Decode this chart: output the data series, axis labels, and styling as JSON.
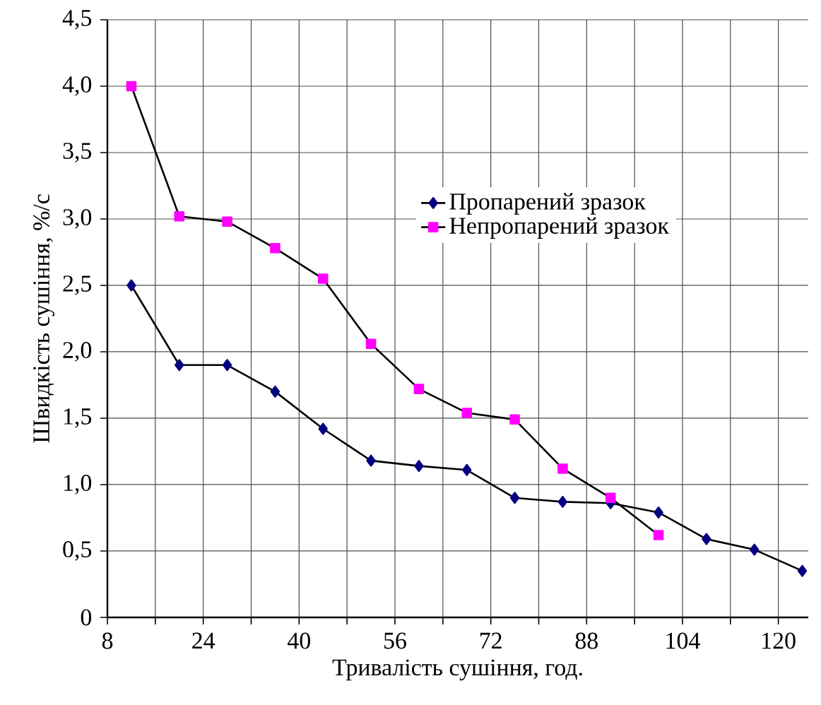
{
  "chart_data": {
    "type": "line",
    "xlabel": "Тривалість сушіння, год.",
    "ylabel": "Швидкість сушіння, %/с",
    "xlim": [
      8,
      125
    ],
    "xticks": [
      8,
      {
        "value": 16,
        "label": null
      },
      24,
      {
        "value": 32,
        "label": null
      },
      40,
      {
        "value": 48,
        "label": null
      },
      56,
      {
        "value": 64,
        "label": null
      },
      72,
      {
        "value": 80,
        "label": null
      },
      88,
      {
        "value": 96,
        "label": null
      },
      104,
      {
        "value": 112,
        "label": null
      },
      120
    ],
    "ylim": [
      0,
      4.5
    ],
    "yticks": [
      0,
      {
        "value": 0.5,
        "label": "0,5"
      },
      {
        "value": 1,
        "label": "1,0"
      },
      {
        "value": 1.5,
        "label": "1,5"
      },
      {
        "value": 2,
        "label": "2,0"
      },
      {
        "value": 2.5,
        "label": "2,5"
      },
      {
        "value": 3,
        "label": "3,0"
      },
      {
        "value": 3.5,
        "label": "3,5"
      },
      {
        "value": 4,
        "label": "4,0"
      },
      {
        "value": 4.5,
        "label": "4,5"
      }
    ],
    "grid": true,
    "legend": "right",
    "line_style": "solid",
    "series": [
      {
        "name": "Пропарений зразок",
        "color": "#000080",
        "marker": "diamond",
        "x": [
          12,
          20,
          28,
          36,
          44,
          52,
          60,
          68,
          76,
          84,
          92,
          100,
          108,
          116,
          124
        ],
        "values": [
          2.5,
          1.9,
          1.9,
          1.7,
          1.42,
          1.18,
          1.14,
          1.11,
          0.9,
          0.87,
          0.86,
          0.79,
          0.59,
          0.51,
          0.35
        ]
      },
      {
        "name": "Непропарений зразок",
        "color": "#ff00ff",
        "marker": "square",
        "x": [
          12,
          20,
          28,
          36,
          44,
          52,
          60,
          68,
          76,
          84,
          92,
          100
        ],
        "values": [
          4.0,
          3.02,
          2.98,
          2.78,
          2.55,
          2.06,
          1.72,
          1.54,
          1.49,
          1.12,
          0.9,
          0.62
        ]
      }
    ]
  }
}
